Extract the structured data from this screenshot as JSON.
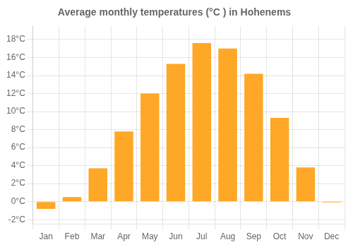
{
  "chart_data": {
    "type": "bar",
    "title": "Average monthly temperatures (°C ) in Hohenems",
    "categories": [
      "Jan",
      "Feb",
      "Mar",
      "Apr",
      "May",
      "Jun",
      "Jul",
      "Aug",
      "Sep",
      "Oct",
      "Nov",
      "Dec"
    ],
    "values": [
      -0.8,
      0.5,
      3.7,
      7.8,
      12.0,
      15.3,
      17.6,
      17.0,
      14.2,
      9.3,
      3.8,
      -0.1
    ],
    "color": "#FFA726",
    "ylim": [
      -2.5,
      19.5
    ],
    "yticks": [
      {
        "value": -2,
        "label": "-2°C"
      },
      {
        "value": 0,
        "label": "0°C"
      },
      {
        "value": 2,
        "label": "2°C"
      },
      {
        "value": 4,
        "label": "4°C"
      },
      {
        "value": 6,
        "label": "6°C"
      },
      {
        "value": 8,
        "label": "8°C"
      },
      {
        "value": 10,
        "label": "10°C"
      },
      {
        "value": 12,
        "label": "12°C"
      },
      {
        "value": 14,
        "label": "14°C"
      },
      {
        "value": 16,
        "label": "16°C"
      },
      {
        "value": 18,
        "label": "18°C"
      }
    ],
    "grid": true
  }
}
